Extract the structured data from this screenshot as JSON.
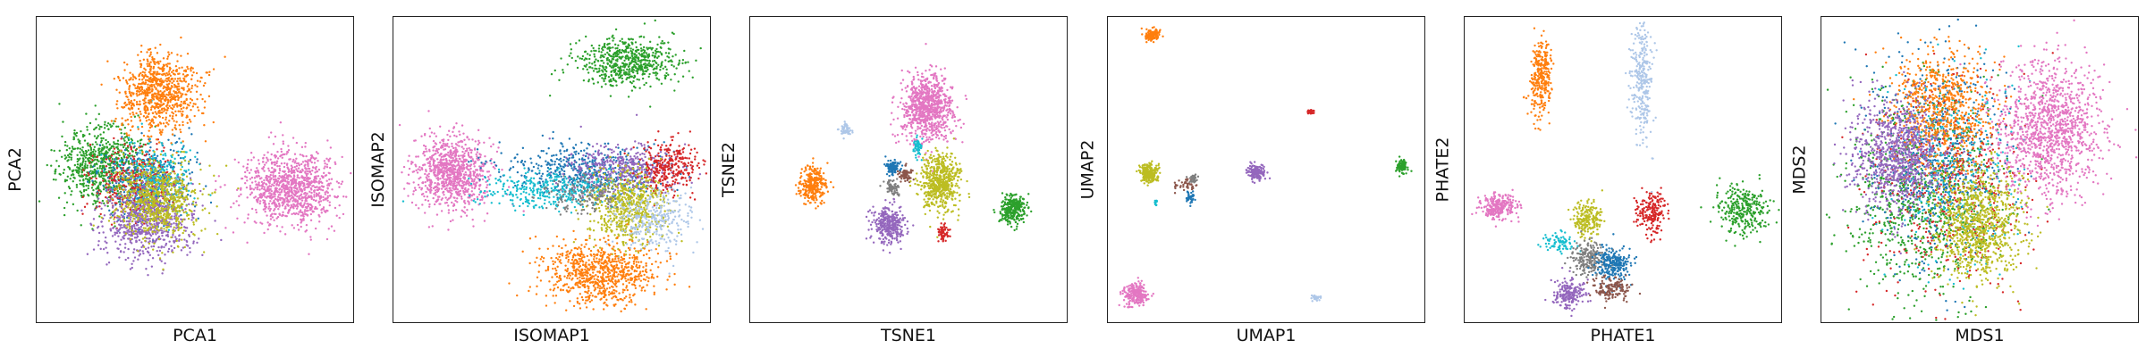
{
  "chart_data": [
    {
      "type": "scatter",
      "xlabel": "PCA1",
      "ylabel": "PCA2",
      "grid": false,
      "ticks": false,
      "colors": {
        "orange": "#ff7f0e",
        "pink": "#e377c2",
        "green": "#2ca02c",
        "blue": "#1f77b4",
        "purple": "#9467bd",
        "olive": "#bcbd22",
        "red": "#d62728",
        "cyan": "#17becf",
        "lightblue": "#aec7e8",
        "brown": "#8c564b",
        "gray": "#7f7f7f"
      },
      "clusters": [
        {
          "color": "green",
          "cx": 0.2,
          "cy": 0.48,
          "sx": 0.065,
          "sy": 0.065,
          "n": 700
        },
        {
          "color": "blue",
          "cx": 0.35,
          "cy": 0.55,
          "sx": 0.065,
          "sy": 0.065,
          "n": 500
        },
        {
          "color": "red",
          "cx": 0.3,
          "cy": 0.54,
          "sx": 0.065,
          "sy": 0.065,
          "n": 300
        },
        {
          "color": "cyan",
          "cx": 0.38,
          "cy": 0.52,
          "sx": 0.06,
          "sy": 0.06,
          "n": 250
        },
        {
          "color": "purple",
          "cx": 0.35,
          "cy": 0.67,
          "sx": 0.07,
          "sy": 0.06,
          "n": 700
        },
        {
          "color": "olive",
          "cx": 0.38,
          "cy": 0.6,
          "sx": 0.065,
          "sy": 0.06,
          "n": 700
        },
        {
          "color": "orange",
          "cx": 0.39,
          "cy": 0.25,
          "sx": 0.06,
          "sy": 0.065,
          "n": 800
        },
        {
          "color": "pink",
          "cx": 0.8,
          "cy": 0.56,
          "sx": 0.075,
          "sy": 0.06,
          "n": 1000
        }
      ]
    },
    {
      "type": "scatter",
      "xlabel": "ISOMAP1",
      "ylabel": "ISOMAP2",
      "grid": false,
      "ticks": false,
      "clusters": [
        {
          "color": "green",
          "cx": 0.74,
          "cy": 0.15,
          "sx": 0.08,
          "sy": 0.04,
          "n": 600
        },
        {
          "color": "pink",
          "cx": 0.18,
          "cy": 0.51,
          "sx": 0.06,
          "sy": 0.06,
          "n": 900
        },
        {
          "color": "blue",
          "cx": 0.6,
          "cy": 0.5,
          "sx": 0.12,
          "sy": 0.04,
          "n": 500
        },
        {
          "color": "purple",
          "cx": 0.72,
          "cy": 0.5,
          "sx": 0.08,
          "sy": 0.04,
          "n": 400
        },
        {
          "color": "red",
          "cx": 0.87,
          "cy": 0.49,
          "sx": 0.05,
          "sy": 0.04,
          "n": 300
        },
        {
          "color": "cyan",
          "cx": 0.5,
          "cy": 0.57,
          "sx": 0.11,
          "sy": 0.03,
          "n": 350
        },
        {
          "color": "olive",
          "cx": 0.74,
          "cy": 0.62,
          "sx": 0.06,
          "sy": 0.06,
          "n": 600
        },
        {
          "color": "lightblue",
          "cx": 0.82,
          "cy": 0.67,
          "sx": 0.06,
          "sy": 0.05,
          "n": 300
        },
        {
          "color": "orange",
          "cx": 0.65,
          "cy": 0.84,
          "sx": 0.09,
          "sy": 0.05,
          "n": 800
        },
        {
          "color": "gray",
          "cx": 0.6,
          "cy": 0.58,
          "sx": 0.06,
          "sy": 0.03,
          "n": 150
        }
      ]
    },
    {
      "type": "scatter",
      "xlabel": "TSNE1",
      "ylabel": "TSNE2",
      "grid": false,
      "ticks": false,
      "clusters": [
        {
          "color": "pink",
          "cx": 0.56,
          "cy": 0.3,
          "sx": 0.04,
          "sy": 0.055,
          "n": 900
        },
        {
          "color": "lightblue",
          "cx": 0.3,
          "cy": 0.37,
          "sx": 0.01,
          "sy": 0.01,
          "n": 60
        },
        {
          "color": "cyan",
          "cx": 0.53,
          "cy": 0.43,
          "sx": 0.008,
          "sy": 0.018,
          "n": 60
        },
        {
          "color": "orange",
          "cx": 0.2,
          "cy": 0.55,
          "sx": 0.02,
          "sy": 0.03,
          "n": 300
        },
        {
          "color": "blue",
          "cx": 0.45,
          "cy": 0.49,
          "sx": 0.012,
          "sy": 0.012,
          "n": 100
        },
        {
          "color": "brown",
          "cx": 0.49,
          "cy": 0.52,
          "sx": 0.01,
          "sy": 0.012,
          "n": 70
        },
        {
          "color": "gray",
          "cx": 0.45,
          "cy": 0.56,
          "sx": 0.01,
          "sy": 0.012,
          "n": 70
        },
        {
          "color": "olive",
          "cx": 0.6,
          "cy": 0.54,
          "sx": 0.03,
          "sy": 0.045,
          "n": 600
        },
        {
          "color": "green",
          "cx": 0.83,
          "cy": 0.63,
          "sx": 0.02,
          "sy": 0.025,
          "n": 300
        },
        {
          "color": "purple",
          "cx": 0.44,
          "cy": 0.68,
          "sx": 0.025,
          "sy": 0.03,
          "n": 350
        },
        {
          "color": "red",
          "cx": 0.61,
          "cy": 0.71,
          "sx": 0.01,
          "sy": 0.012,
          "n": 70
        }
      ]
    },
    {
      "type": "scatter",
      "xlabel": "UMAP1",
      "ylabel": "UMAP2",
      "grid": false,
      "ticks": false,
      "clusters": [
        {
          "color": "orange",
          "cx": 0.14,
          "cy": 0.06,
          "sx": 0.012,
          "sy": 0.01,
          "n": 120
        },
        {
          "color": "red",
          "cx": 0.64,
          "cy": 0.31,
          "sx": 0.005,
          "sy": 0.005,
          "n": 25
        },
        {
          "color": "olive",
          "cx": 0.13,
          "cy": 0.51,
          "sx": 0.016,
          "sy": 0.016,
          "n": 200
        },
        {
          "color": "brown",
          "cx": 0.24,
          "cy": 0.55,
          "sx": 0.03,
          "sy": 0.01,
          "n": 40
        },
        {
          "color": "gray",
          "cx": 0.27,
          "cy": 0.53,
          "sx": 0.008,
          "sy": 0.008,
          "n": 30
        },
        {
          "color": "blue",
          "cx": 0.26,
          "cy": 0.59,
          "sx": 0.008,
          "sy": 0.01,
          "n": 40
        },
        {
          "color": "cyan",
          "cx": 0.15,
          "cy": 0.61,
          "sx": 0.004,
          "sy": 0.006,
          "n": 12
        },
        {
          "color": "purple",
          "cx": 0.47,
          "cy": 0.51,
          "sx": 0.014,
          "sy": 0.012,
          "n": 150
        },
        {
          "color": "green",
          "cx": 0.93,
          "cy": 0.49,
          "sx": 0.01,
          "sy": 0.012,
          "n": 100
        },
        {
          "color": "pink",
          "cx": 0.09,
          "cy": 0.91,
          "sx": 0.018,
          "sy": 0.018,
          "n": 250
        },
        {
          "color": "lightblue",
          "cx": 0.66,
          "cy": 0.92,
          "sx": 0.008,
          "sy": 0.006,
          "n": 25
        }
      ]
    },
    {
      "type": "scatter",
      "xlabel": "PHATE1",
      "ylabel": "PHATE2",
      "grid": false,
      "ticks": false,
      "clusters": [
        {
          "color": "orange",
          "cx": 0.24,
          "cy": 0.2,
          "sx": 0.018,
          "sy": 0.06,
          "n": 300
        },
        {
          "color": "lightblue",
          "cx": 0.56,
          "cy": 0.2,
          "sx": 0.018,
          "sy": 0.1,
          "n": 300
        },
        {
          "color": "pink",
          "cx": 0.11,
          "cy": 0.62,
          "sx": 0.03,
          "sy": 0.02,
          "n": 250
        },
        {
          "color": "olive",
          "cx": 0.39,
          "cy": 0.66,
          "sx": 0.022,
          "sy": 0.028,
          "n": 200
        },
        {
          "color": "red",
          "cx": 0.59,
          "cy": 0.64,
          "sx": 0.022,
          "sy": 0.035,
          "n": 200
        },
        {
          "color": "green",
          "cx": 0.88,
          "cy": 0.63,
          "sx": 0.04,
          "sy": 0.04,
          "n": 300
        },
        {
          "color": "cyan",
          "cx": 0.3,
          "cy": 0.74,
          "sx": 0.025,
          "sy": 0.015,
          "n": 80
        },
        {
          "color": "gray",
          "cx": 0.39,
          "cy": 0.79,
          "sx": 0.03,
          "sy": 0.03,
          "n": 200
        },
        {
          "color": "blue",
          "cx": 0.47,
          "cy": 0.81,
          "sx": 0.03,
          "sy": 0.03,
          "n": 250
        },
        {
          "color": "brown",
          "cx": 0.46,
          "cy": 0.89,
          "sx": 0.03,
          "sy": 0.02,
          "n": 150
        },
        {
          "color": "purple",
          "cx": 0.33,
          "cy": 0.91,
          "sx": 0.025,
          "sy": 0.025,
          "n": 200
        }
      ]
    },
    {
      "type": "scatter",
      "xlabel": "MDS1",
      "ylabel": "MDS2",
      "grid": false,
      "ticks": false,
      "clusters": [
        {
          "color": "green",
          "cx": 0.32,
          "cy": 0.6,
          "sx": 0.12,
          "sy": 0.18,
          "n": 900
        },
        {
          "color": "blue",
          "cx": 0.38,
          "cy": 0.45,
          "sx": 0.11,
          "sy": 0.16,
          "n": 600
        },
        {
          "color": "red",
          "cx": 0.4,
          "cy": 0.55,
          "sx": 0.12,
          "sy": 0.17,
          "n": 500
        },
        {
          "color": "cyan",
          "cx": 0.42,
          "cy": 0.5,
          "sx": 0.11,
          "sy": 0.16,
          "n": 300
        },
        {
          "color": "orange",
          "cx": 0.38,
          "cy": 0.3,
          "sx": 0.08,
          "sy": 0.1,
          "n": 700
        },
        {
          "color": "purple",
          "cx": 0.24,
          "cy": 0.45,
          "sx": 0.07,
          "sy": 0.09,
          "n": 900
        },
        {
          "color": "olive",
          "cx": 0.5,
          "cy": 0.68,
          "sx": 0.07,
          "sy": 0.09,
          "n": 900
        },
        {
          "color": "pink",
          "cx": 0.72,
          "cy": 0.37,
          "sx": 0.08,
          "sy": 0.11,
          "n": 1200
        }
      ]
    }
  ]
}
